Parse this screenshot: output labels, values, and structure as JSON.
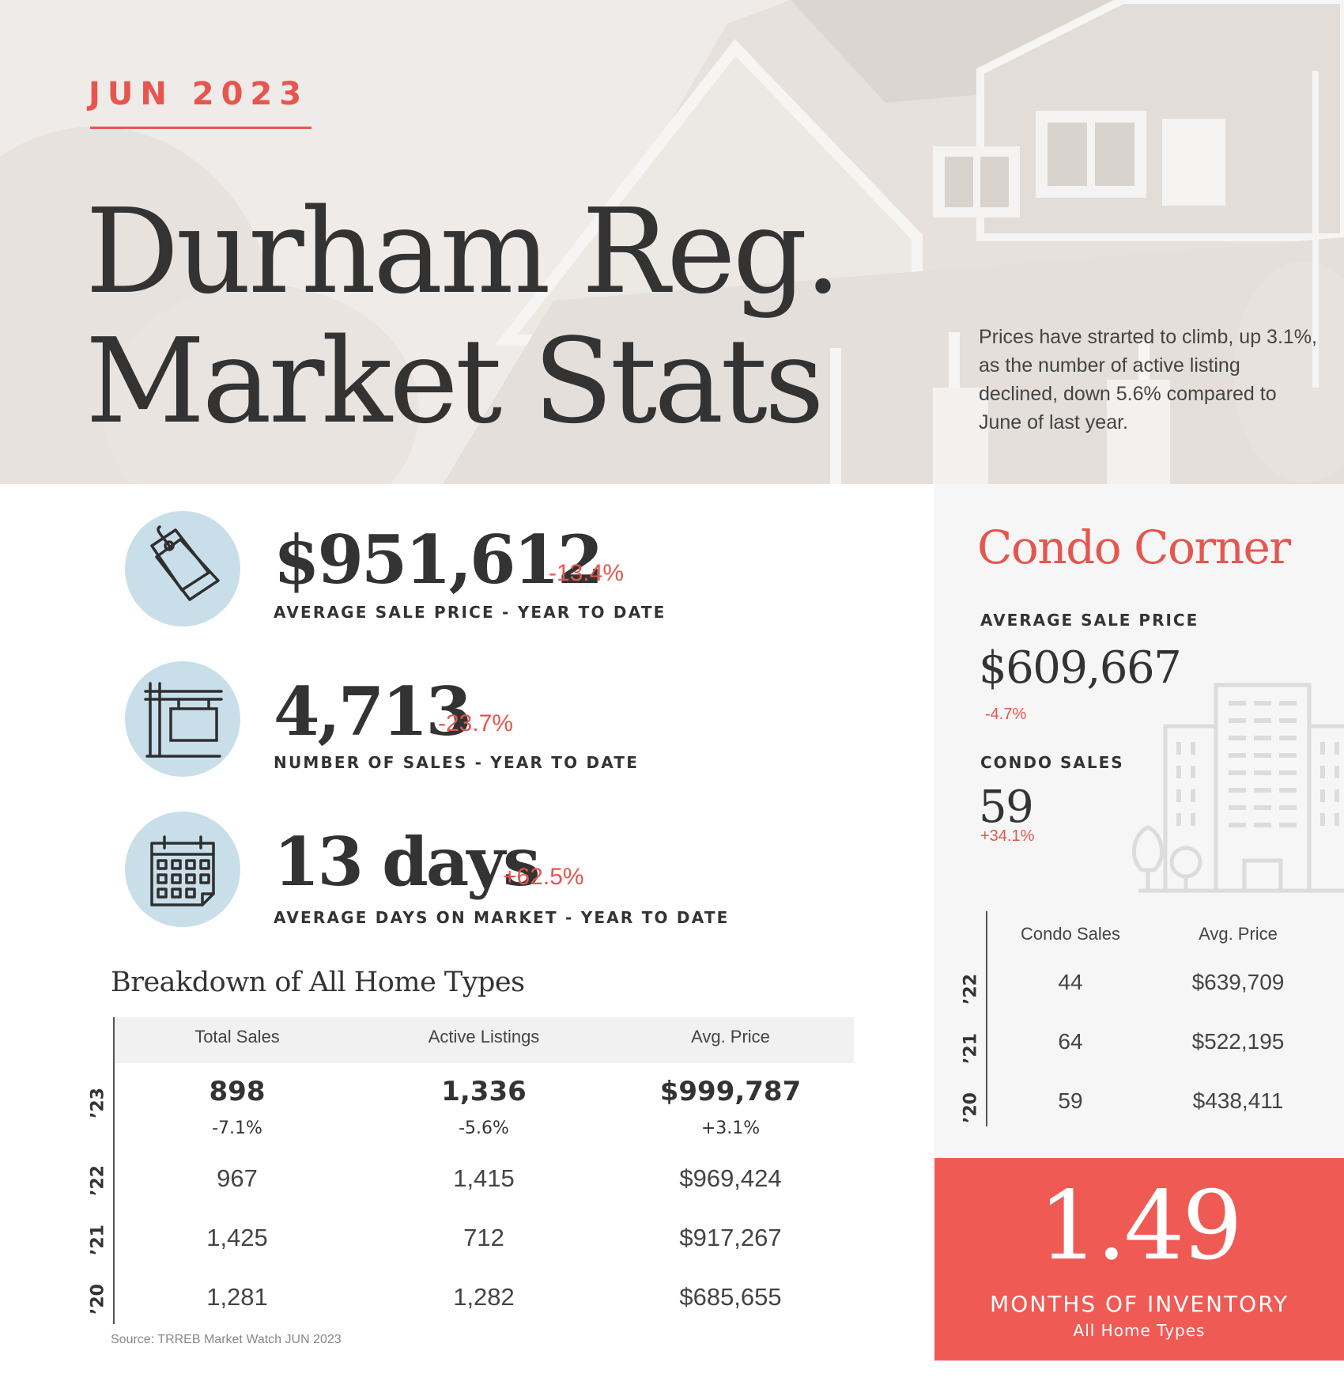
{
  "header": {
    "month": "JUN 2023",
    "title_line_1": "Durham Reg.",
    "title_line_2": "Market Stats",
    "blurb": "Prices have strarted to climb, up 3.1%, as the number of active listing declined, down 5.6% compared to June of last year."
  },
  "stats": [
    {
      "icon": "price-tag-icon",
      "value": "$951,612",
      "change": "-13.4%",
      "label": "AVERAGE SALE PRICE - YEAR TO DATE"
    },
    {
      "icon": "sale-sign-icon",
      "value": "4,713",
      "change": "-23.7%",
      "label": "NUMBER OF SALES - YEAR TO DATE"
    },
    {
      "icon": "calendar-icon",
      "value": "13 days",
      "change": "+62.5%",
      "label": "AVERAGE DAYS ON MARKET - YEAR TO DATE"
    }
  ],
  "breakdown": {
    "title": "Breakdown of All Home Types",
    "columns": [
      "Total Sales",
      "Active Listings",
      "Avg. Price"
    ],
    "rows": [
      {
        "year": "’23",
        "values": [
          "898",
          "1,336",
          "$999,787"
        ],
        "changes": [
          "-7.1%",
          "-5.6%",
          "+3.1%"
        ]
      },
      {
        "year": "’22",
        "values": [
          "967",
          "1,415",
          "$969,424"
        ]
      },
      {
        "year": "’21",
        "values": [
          "1,425",
          "712",
          "$917,267"
        ]
      },
      {
        "year": "’20",
        "values": [
          "1,281",
          "1,282",
          "$685,655"
        ]
      }
    ],
    "source": "Source: TRREB Market Watch JUN 2023"
  },
  "condo": {
    "title": "Condo Corner",
    "avg_price_label": "AVERAGE SALE PRICE",
    "avg_price": "$609,667",
    "avg_price_change": "-4.7%",
    "sales_label": "CONDO SALES",
    "sales": "59",
    "sales_change": "+34.1%",
    "icon": "buildings-icon",
    "columns": [
      "Condo Sales",
      "Avg. Price"
    ],
    "rows": [
      {
        "year": "’22",
        "values": [
          "44",
          "$639,709"
        ]
      },
      {
        "year": "’21",
        "values": [
          "64",
          "$522,195"
        ]
      },
      {
        "year": "’20",
        "values": [
          "59",
          "$438,411"
        ]
      }
    ]
  },
  "inventory": {
    "value": "1.49",
    "label": "MONTHS OF INVENTORY",
    "sublabel": "All Home Types"
  },
  "colors": {
    "accent": "#e5564f",
    "inventory_bg": "#f05a55",
    "icon_circle": "#c8dfea",
    "hero_bg": "#efebe8",
    "text": "#333333"
  }
}
